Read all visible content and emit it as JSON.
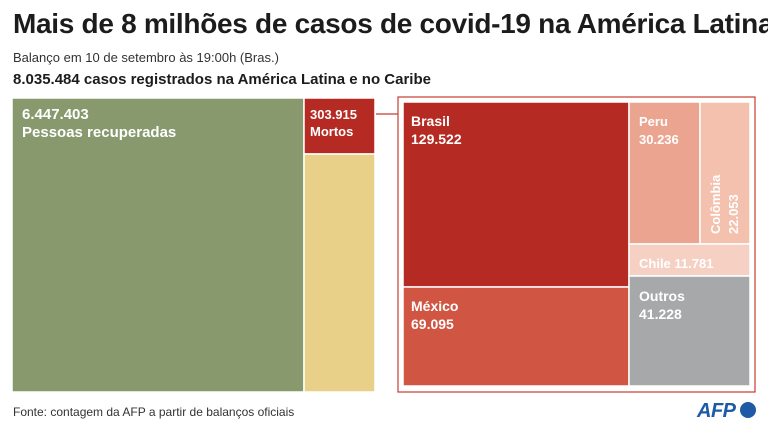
{
  "title": "Mais de 8 milhões de casos de covid-19 na América Latina",
  "subtitle": "Balanço em 10 de setembro às 19:00h (Bras.)",
  "total_text": "8.035.484 casos registrados na América Latina e no Caribe",
  "source": "Fonte: contagem da AFP a partir de balanços oficiais",
  "logo_text": "AFP",
  "colors": {
    "recovered": "#87996d",
    "active": "#e8d089",
    "deaths": "#b52b23",
    "brasil": "#b52b23",
    "mexico": "#d05643",
    "peru": "#eba48f",
    "colombia": "#f3c1ae",
    "chile": "#f6d0c2",
    "outros": "#a7a8aa",
    "connector": "#c43c30"
  },
  "chart_data": {
    "type": "treemap",
    "total_cases": 8035484,
    "overview": [
      {
        "id": "recovered",
        "value": 6447403,
        "value_label": "6.447.403",
        "label": "Pessoas recuperadas"
      },
      {
        "id": "deaths",
        "value": 303915,
        "value_label": "303.915",
        "label": "Mortos"
      },
      {
        "id": "active",
        "value": 1284166,
        "value_label": "",
        "label": ""
      }
    ],
    "deaths_by_country": [
      {
        "id": "brasil",
        "name": "Brasil",
        "value": 129522,
        "value_label": "129.522"
      },
      {
        "id": "mexico",
        "name": "México",
        "value": 69095,
        "value_label": "69.095"
      },
      {
        "id": "outros",
        "name": "Outros",
        "value": 41228,
        "value_label": "41.228"
      },
      {
        "id": "peru",
        "name": "Peru",
        "value": 30236,
        "value_label": "30.236"
      },
      {
        "id": "colombia",
        "name": "Colômbia",
        "value": 22053,
        "value_label": "22.053"
      },
      {
        "id": "chile",
        "name": "Chile",
        "value": 11781,
        "value_label": "11.781"
      }
    ]
  }
}
